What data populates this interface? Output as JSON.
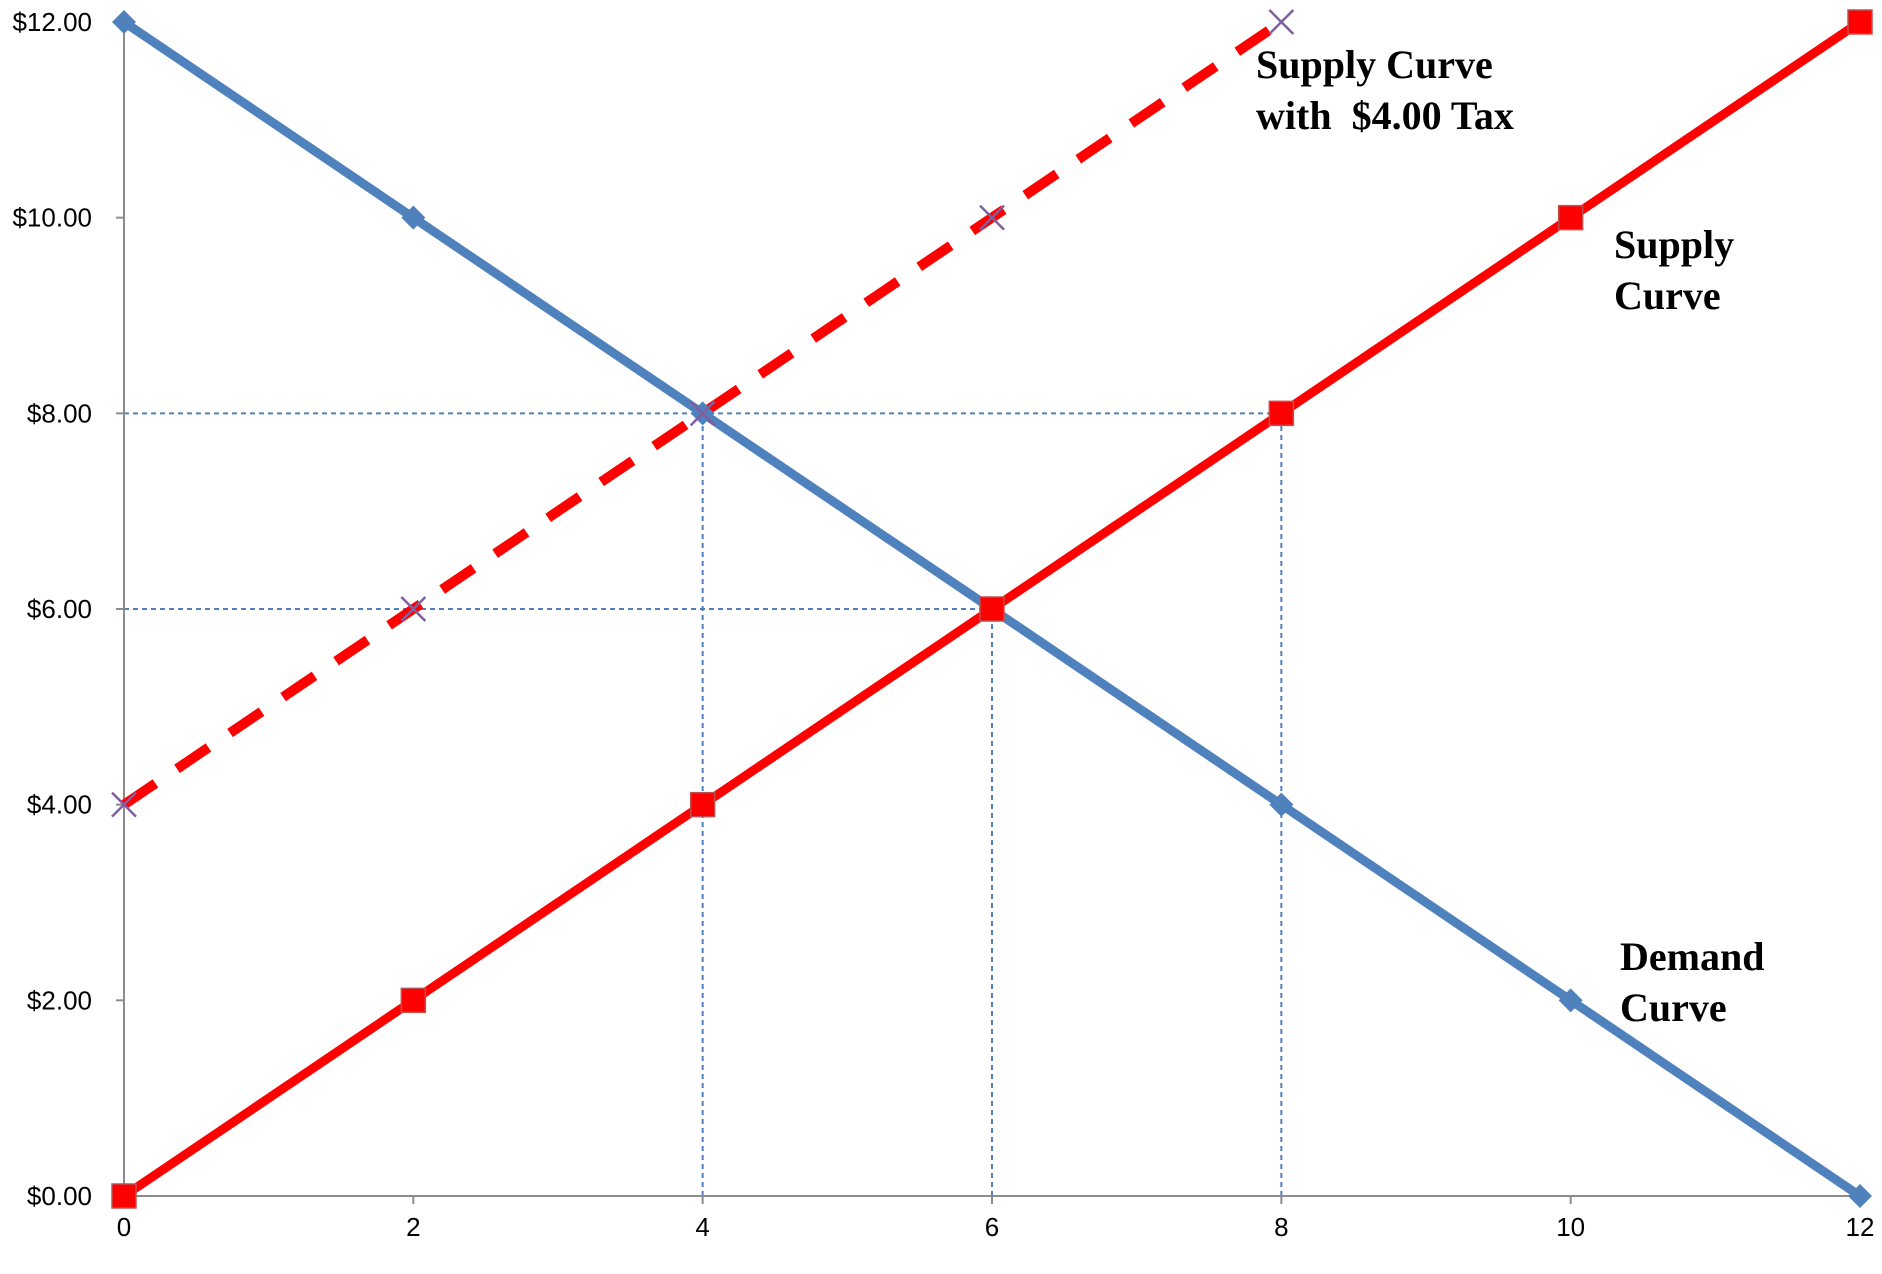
{
  "chart_data": {
    "type": "line",
    "x": [
      0,
      2,
      4,
      6,
      8,
      10,
      12
    ],
    "xlim": [
      0,
      12
    ],
    "ylim": [
      0,
      12
    ],
    "x_ticks": [
      0,
      2,
      4,
      6,
      8,
      10,
      12
    ],
    "y_ticks": [
      0,
      2,
      4,
      6,
      8,
      10,
      12
    ],
    "x_tick_labels": [
      "0",
      "2",
      "4",
      "6",
      "8",
      "10",
      "12"
    ],
    "y_tick_labels": [
      "$0.00",
      "$2.00",
      "$4.00",
      "$6.00",
      "$8.00",
      "$10.00",
      "$12.00"
    ],
    "title": "",
    "xlabel": "",
    "ylabel": "",
    "grid": false,
    "legend": "none",
    "series": [
      {
        "key": "demand",
        "x": [
          0,
          2,
          4,
          6,
          8,
          10,
          12
        ],
        "values": [
          12,
          10,
          8,
          6,
          4,
          2,
          0
        ],
        "color": "#4F81BD",
        "marker": "diamond",
        "line_style": "solid"
      },
      {
        "key": "supply",
        "x": [
          0,
          2,
          4,
          6,
          8,
          10,
          12
        ],
        "values": [
          0,
          2,
          4,
          6,
          8,
          10,
          12
        ],
        "color": "#FF0000",
        "marker": "square",
        "line_style": "solid"
      },
      {
        "key": "supply_tax",
        "x": [
          0,
          2,
          4,
          6,
          8
        ],
        "values": [
          4,
          6,
          8,
          10,
          12
        ],
        "color": "#FF0000",
        "marker": "x",
        "marker_color": "#7F5FA0",
        "line_style": "dashed"
      }
    ],
    "reference_lines": {
      "color": "#4F81BD",
      "style": "dotted",
      "horizontal": [
        {
          "y": 8,
          "x_from": 0,
          "x_to": 8
        },
        {
          "y": 6,
          "x_from": 0,
          "x_to": 6
        }
      ],
      "vertical": [
        {
          "x": 4,
          "y_from": 0,
          "y_to": 8
        },
        {
          "x": 6,
          "y_from": 0,
          "y_to": 6
        },
        {
          "x": 8,
          "y_from": 0,
          "y_to": 8
        }
      ]
    },
    "annotations": [
      {
        "key": "supply_tax",
        "lines": [
          "Supply Curve",
          "with  $4.00 Tax"
        ]
      },
      {
        "key": "supply",
        "lines": [
          "Supply",
          "Curve"
        ]
      },
      {
        "key": "demand",
        "lines": [
          "Demand",
          "Curve"
        ]
      }
    ]
  }
}
